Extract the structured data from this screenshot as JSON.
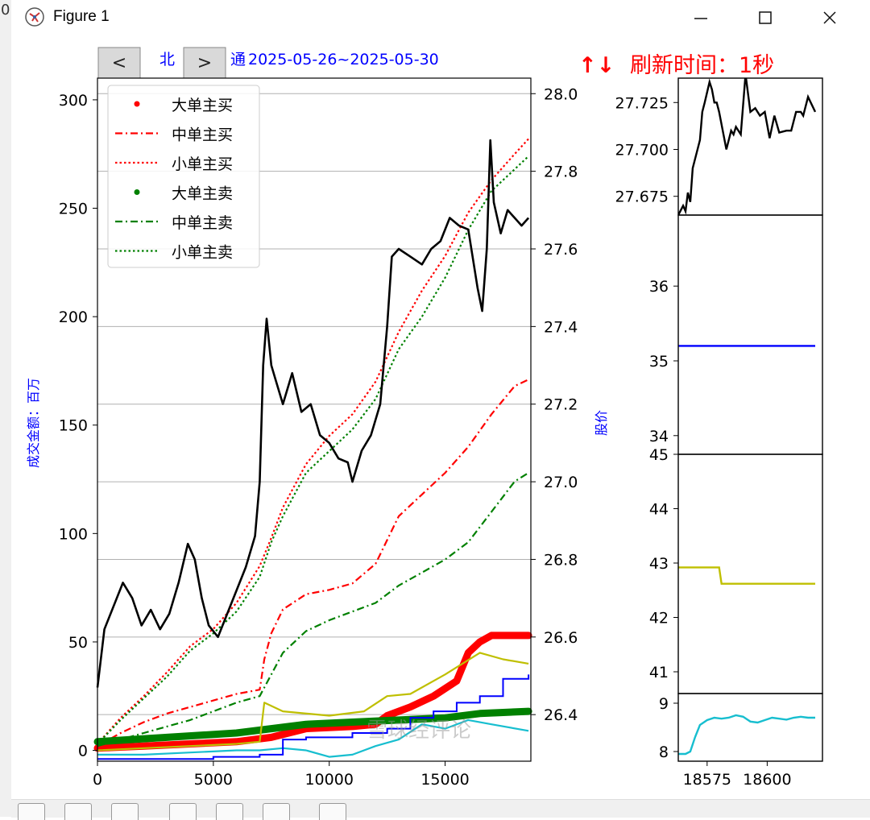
{
  "window": {
    "title": "Figure 1",
    "minimize_icon": "minimize-icon",
    "maximize_icon": "maximize-icon",
    "close_icon": "close-icon",
    "left_edge_text": "0"
  },
  "nav": {
    "prev_label": "<",
    "next_label": ">"
  },
  "header": {
    "title_left": "北",
    "title_mid": "通",
    "date_range": "2025-05-26~2025-05-30",
    "refresh_arrows": "↑↓",
    "refresh_label": "刷新时间：1秒"
  },
  "watermark": "雪球经评论",
  "colors": {
    "buy": "#ff0000",
    "sell": "#008000",
    "price": "#000000",
    "olive": "#bfbf00",
    "cyan": "#17becf",
    "blue": "#0000ff",
    "axis_label": "#0000ff"
  },
  "toolbar_icons": [
    "home-icon",
    "back-icon",
    "forward-icon",
    "pan-icon",
    "zoom-icon",
    "configure-icon",
    "save-icon"
  ],
  "chart_data": [
    {
      "type": "line",
      "title": "",
      "xlabel": "",
      "ylabel": "成交金额：百万",
      "ylabel_right": "股价",
      "xlim": [
        0,
        18700
      ],
      "ylim": [
        -5,
        310
      ],
      "ylim_right": [
        26.28,
        28.04
      ],
      "x_ticks": [
        0,
        5000,
        10000,
        15000
      ],
      "y_ticks": [
        0,
        50,
        100,
        150,
        200,
        250,
        300
      ],
      "y_ticks_right": [
        26.4,
        26.6,
        26.8,
        27.0,
        27.2,
        27.4,
        27.6,
        27.8,
        28.0
      ],
      "grid": "horizontal",
      "legend_position": "top-left",
      "legend": [
        "大单主买",
        "中单主买",
        "小单主买",
        "大单主卖",
        "中单主卖",
        "小单主卖"
      ],
      "series": [
        {
          "name": "大单主买",
          "style": "dots",
          "color": "#ff0000",
          "x": [
            0,
            2000,
            4000,
            6000,
            7500,
            9000,
            11000,
            12000,
            12500,
            13500,
            14500,
            15500,
            16000,
            16500,
            17000,
            18600
          ],
          "y": [
            1,
            2,
            3,
            4,
            6,
            10,
            11,
            12,
            16,
            20,
            25,
            32,
            45,
            50,
            53,
            53
          ]
        },
        {
          "name": "中单主买",
          "style": "dashdot",
          "color": "#ff0000",
          "x": [
            0,
            1000,
            2000,
            3000,
            4000,
            5000,
            6000,
            7000,
            7200,
            7500,
            8000,
            9000,
            10000,
            11000,
            12000,
            13000,
            14000,
            15000,
            16000,
            17000,
            18000,
            18600
          ],
          "y": [
            2,
            8,
            13,
            17,
            20,
            23,
            26,
            28,
            42,
            54,
            65,
            72,
            74,
            77,
            86,
            108,
            118,
            128,
            140,
            155,
            168,
            171
          ]
        },
        {
          "name": "小单主买",
          "style": "dotted",
          "color": "#ff0000",
          "x": [
            0,
            1000,
            2000,
            3000,
            4000,
            5000,
            6000,
            7000,
            7500,
            8000,
            9000,
            10000,
            11000,
            12000,
            13000,
            14000,
            15000,
            16000,
            17000,
            18000,
            18600
          ],
          "y": [
            3,
            15,
            25,
            36,
            48,
            56,
            68,
            85,
            98,
            112,
            132,
            145,
            155,
            170,
            193,
            212,
            228,
            248,
            263,
            275,
            282
          ]
        },
        {
          "name": "大单主卖",
          "style": "dots",
          "color": "#008000",
          "x": [
            0,
            3000,
            6000,
            7500,
            9000,
            11000,
            13000,
            15000,
            16500,
            18600
          ],
          "y": [
            4,
            6,
            8,
            10,
            12,
            13,
            14,
            15,
            17,
            18
          ]
        },
        {
          "name": "中单主卖",
          "style": "dashdot",
          "color": "#008000",
          "x": [
            0,
            1000,
            2000,
            3000,
            4000,
            5000,
            6000,
            7000,
            7500,
            8000,
            9000,
            10000,
            11000,
            12000,
            13000,
            14000,
            15000,
            16000,
            17000,
            18000,
            18600
          ],
          "y": [
            2,
            5,
            8,
            11,
            14,
            18,
            22,
            25,
            35,
            45,
            55,
            60,
            64,
            68,
            76,
            82,
            88,
            96,
            110,
            124,
            128
          ]
        },
        {
          "name": "小单主卖",
          "style": "dotted",
          "color": "#008000",
          "x": [
            0,
            1000,
            2000,
            3000,
            4000,
            5000,
            6000,
            7000,
            7500,
            8000,
            9000,
            10000,
            11000,
            12000,
            13000,
            14000,
            15000,
            16000,
            17000,
            18000,
            18600
          ],
          "y": [
            3,
            14,
            24,
            34,
            46,
            54,
            64,
            80,
            96,
            108,
            128,
            138,
            148,
            162,
            185,
            200,
            218,
            240,
            258,
            268,
            274
          ]
        },
        {
          "style": "solid",
          "color": "#bfbf00",
          "x": [
            0,
            2000,
            4000,
            6000,
            7000,
            7200,
            8000,
            10000,
            11500,
            12500,
            13500,
            15000,
            16500,
            17500,
            18600
          ],
          "y": [
            0,
            1,
            2,
            3,
            4,
            22,
            18,
            16,
            18,
            25,
            26,
            35,
            45,
            42,
            40
          ]
        },
        {
          "style": "solid",
          "color": "#17becf",
          "x": [
            0,
            2000,
            4000,
            6000,
            7000,
            8000,
            9000,
            10000,
            11000,
            12000,
            13000,
            14000,
            15000,
            16000,
            17000,
            18600
          ],
          "y": [
            -2,
            -2,
            -1,
            0,
            0,
            1,
            0,
            -3,
            -2,
            2,
            5,
            12,
            10,
            14,
            12,
            9
          ]
        },
        {
          "style": "step",
          "color": "#0000ff",
          "x": [
            0,
            5000,
            7000,
            8000,
            9000,
            11000,
            12500,
            13500,
            14500,
            15500,
            16500,
            17500,
            18600
          ],
          "y": [
            -4,
            -3,
            -2,
            5,
            6,
            8,
            10,
            15,
            18,
            22,
            25,
            33,
            35
          ]
        },
        {
          "name": "股价",
          "axis": "right",
          "style": "solid",
          "color": "#000000",
          "x": [
            0,
            300,
            700,
            1100,
            1500,
            1900,
            2300,
            2700,
            3100,
            3500,
            3900,
            4200,
            4500,
            4800,
            5200,
            5600,
            6000,
            6400,
            6800,
            7000,
            7150,
            7300,
            7500,
            7700,
            8000,
            8400,
            8800,
            9200,
            9600,
            10000,
            10400,
            10800,
            11000,
            11400,
            11800,
            12200,
            12500,
            12700,
            13000,
            13500,
            14000,
            14400,
            14800,
            15200,
            15600,
            16000,
            16400,
            16600,
            16800,
            16950,
            17100,
            17400,
            17700,
            18000,
            18300,
            18600
          ],
          "y": [
            26.47,
            26.62,
            26.68,
            26.74,
            26.7,
            26.63,
            26.67,
            26.62,
            26.66,
            26.74,
            26.84,
            26.8,
            26.7,
            26.63,
            26.6,
            26.66,
            26.72,
            26.78,
            26.86,
            27.0,
            27.3,
            27.42,
            27.3,
            27.26,
            27.2,
            27.28,
            27.18,
            27.2,
            27.12,
            27.1,
            27.06,
            27.05,
            27.0,
            27.08,
            27.12,
            27.2,
            27.4,
            27.58,
            27.6,
            27.58,
            27.56,
            27.6,
            27.62,
            27.68,
            27.66,
            27.65,
            27.5,
            27.44,
            27.6,
            27.88,
            27.72,
            27.64,
            27.7,
            27.68,
            27.66,
            27.68
          ]
        }
      ]
    },
    {
      "type": "line",
      "title": "",
      "xlim": [
        18563,
        18623
      ],
      "ylim": [
        27.665,
        27.738
      ],
      "y_ticks": [
        27.675,
        27.7,
        27.725
      ],
      "series": [
        {
          "color": "#000000",
          "x": [
            18563,
            18565,
            18566,
            18567,
            18568,
            18569,
            18571,
            18572,
            18573,
            18574,
            18576,
            18577,
            18578,
            18579,
            18580,
            18583,
            18585,
            18586,
            18587,
            18589,
            18591,
            18593,
            18595,
            18597,
            18599,
            18601,
            18603,
            18605,
            18608,
            18610,
            18612,
            18614,
            18615,
            18617,
            18620
          ],
          "y": [
            27.665,
            27.67,
            27.667,
            27.677,
            27.672,
            27.69,
            27.7,
            27.705,
            27.72,
            27.725,
            27.736,
            27.732,
            27.725,
            27.725,
            27.72,
            27.7,
            27.71,
            27.708,
            27.712,
            27.708,
            27.74,
            27.72,
            27.722,
            27.718,
            27.72,
            27.706,
            27.718,
            27.709,
            27.71,
            27.71,
            27.72,
            27.72,
            27.718,
            27.728,
            27.72
          ]
        }
      ]
    },
    {
      "type": "line",
      "title": "",
      "xlim": [
        18563,
        18623
      ],
      "ylim": [
        33.75,
        36.95
      ],
      "y_ticks": [
        34,
        35,
        36
      ],
      "series": [
        {
          "color": "#0000ff",
          "x": [
            18563,
            18620
          ],
          "y": [
            35.2,
            35.2
          ]
        }
      ]
    },
    {
      "type": "line",
      "title": "",
      "xlim": [
        18563,
        18623
      ],
      "ylim": [
        40.6,
        45.0
      ],
      "y_ticks": [
        41,
        42,
        43,
        44,
        45
      ],
      "series": [
        {
          "color": "#bfbf00",
          "x": [
            18563,
            18580,
            18581,
            18620
          ],
          "y": [
            42.92,
            42.92,
            42.62,
            42.62
          ]
        }
      ]
    },
    {
      "type": "line",
      "title": "",
      "xlim": [
        18563,
        18623
      ],
      "ylim": [
        7.8,
        9.2
      ],
      "y_ticks": [
        8,
        9
      ],
      "x_ticks": [
        18575,
        18600
      ],
      "series": [
        {
          "color": "#17becf",
          "x": [
            18563,
            18566,
            18568,
            18570,
            18572,
            18575,
            18578,
            18581,
            18584,
            18587,
            18590,
            18593,
            18596,
            18599,
            18602,
            18605,
            18608,
            18611,
            18614,
            18617,
            18620
          ],
          "y": [
            7.95,
            7.95,
            8.0,
            8.3,
            8.55,
            8.65,
            8.7,
            8.68,
            8.7,
            8.75,
            8.72,
            8.62,
            8.6,
            8.65,
            8.7,
            8.68,
            8.66,
            8.7,
            8.72,
            8.7,
            8.7
          ]
        }
      ]
    }
  ]
}
